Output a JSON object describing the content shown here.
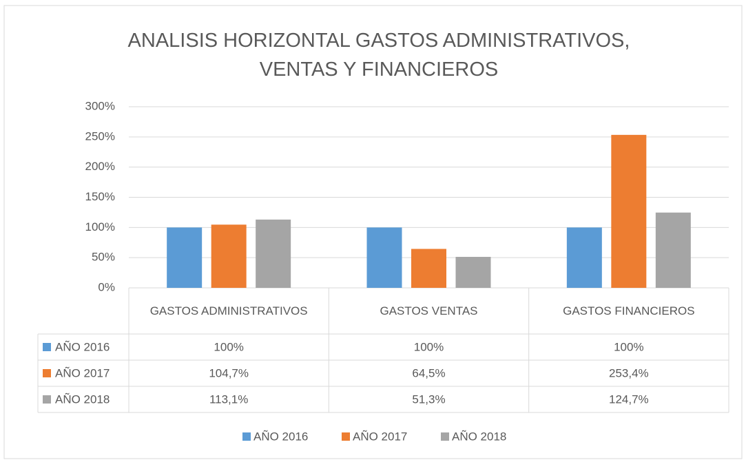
{
  "chart_data": {
    "type": "bar",
    "title": "ANALISIS HORIZONTAL GASTOS ADMINISTRATIVOS, VENTAS Y FINANCIEROS",
    "categories": [
      "GASTOS ADMINISTRATIVOS",
      "GASTOS VENTAS",
      "GASTOS FINANCIEROS"
    ],
    "series": [
      {
        "name": "AÑO 2016",
        "color": "#5b9bd5",
        "values": [
          100,
          100,
          100
        ],
        "value_labels": [
          "100%",
          "100%",
          "100%"
        ]
      },
      {
        "name": "AÑO 2017",
        "color": "#ed7d31",
        "values": [
          104.7,
          64.5,
          253.4
        ],
        "value_labels": [
          "104,7%",
          "64,5%",
          "253,4%"
        ]
      },
      {
        "name": "AÑO 2018",
        "color": "#a5a5a5",
        "values": [
          113.1,
          51.3,
          124.7
        ],
        "value_labels": [
          "113,1%",
          "51,3%",
          "124,7%"
        ]
      }
    ],
    "ylim": [
      0,
      300
    ],
    "yticks": [
      {
        "value": 0,
        "label": "0%"
      },
      {
        "value": 50,
        "label": "50%"
      },
      {
        "value": 100,
        "label": "100%"
      },
      {
        "value": 150,
        "label": "150%"
      },
      {
        "value": 200,
        "label": "200%"
      },
      {
        "value": 250,
        "label": "250%"
      },
      {
        "value": 300,
        "label": "300%"
      }
    ],
    "grid": true,
    "legend": "bottom"
  }
}
